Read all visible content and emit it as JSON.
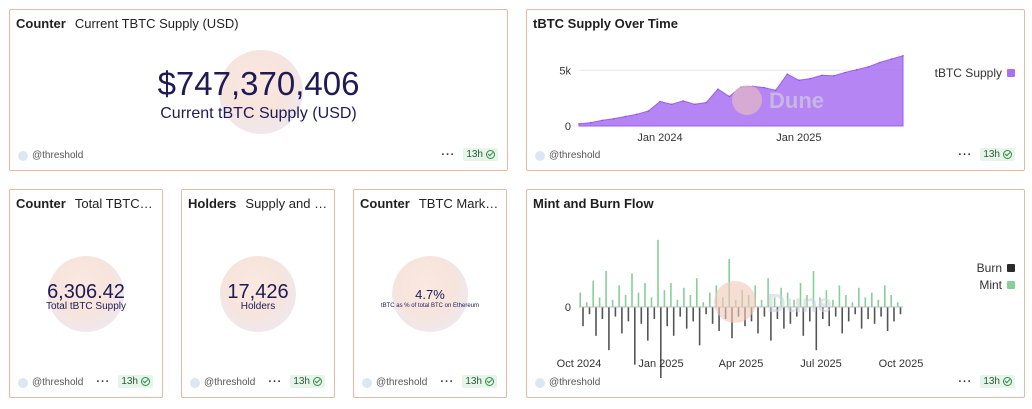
{
  "common": {
    "author": "@threshold",
    "age": "13h"
  },
  "supply_usd": {
    "kind": "Counter",
    "title": "Current TBTC Supply (USD)",
    "value": "$747,370,406",
    "label": "Current tBTC Supply (USD)"
  },
  "total": {
    "kind": "Counter",
    "title": "Total TBTC Su...",
    "value": "6,306.42",
    "label": "Total tBTC Supply"
  },
  "holders": {
    "kind": "Holders",
    "title": "Supply and Ho...",
    "value": "17,426",
    "label": "Holders"
  },
  "market": {
    "kind": "Counter",
    "title": "TBTC Market ...",
    "value": "4.7%",
    "label": "tBTC as % of total BTC on Ethereum"
  },
  "colors": {
    "accent": "#a970f2",
    "mint": "#86cf99",
    "burn": "#2b2b2b",
    "border": "#e9b9a6"
  },
  "chart_data": [
    {
      "type": "area",
      "title": "tBTC Supply Over Time",
      "watermark": "Dune",
      "y_ticks": [
        "0",
        "5k"
      ],
      "x_ticks": [
        "Jan 2024",
        "Jan 2025"
      ],
      "ylim": [
        0,
        7000
      ],
      "grid": true,
      "legend": "right",
      "series": [
        {
          "name": "tBTC Supply",
          "x": [
            "2023-06",
            "2023-07",
            "2023-08",
            "2023-09",
            "2023-10",
            "2023-11",
            "2023-12",
            "2024-01",
            "2024-02",
            "2024-03",
            "2024-04",
            "2024-05",
            "2024-06",
            "2024-07",
            "2024-08",
            "2024-09",
            "2024-10",
            "2024-11",
            "2024-12",
            "2025-01",
            "2025-02",
            "2025-03",
            "2025-04",
            "2025-05",
            "2025-06",
            "2025-07",
            "2025-08",
            "2025-09",
            "2025-10"
          ],
          "values": [
            200,
            300,
            500,
            650,
            850,
            1050,
            1350,
            2200,
            1950,
            2250,
            1950,
            2100,
            3300,
            2650,
            3500,
            3550,
            3450,
            3200,
            4650,
            4100,
            4250,
            4550,
            4500,
            4800,
            5050,
            5300,
            5700,
            6000,
            6300
          ]
        }
      ]
    },
    {
      "type": "bar",
      "title": "Mint and Burn Flow",
      "watermark": "Dune",
      "y_ticks": [
        "0"
      ],
      "x_ticks": [
        "Oct 2024",
        "Jan 2025",
        "Apr 2025",
        "Jul 2025",
        "Oct 2025"
      ],
      "legend": "right",
      "series": [
        {
          "name": "Burn",
          "values": [
            -40,
            -15,
            -60,
            -25,
            -90,
            -20,
            -55,
            -30,
            -120,
            -35,
            -70,
            -25,
            -150,
            -40,
            -60,
            -20,
            -45,
            -30,
            -80,
            -15,
            -35,
            -50,
            -25,
            -65,
            -20,
            -40,
            -30,
            -55,
            -20,
            -70,
            -25,
            -45,
            -35,
            -20,
            -60,
            -30,
            -90,
            -25,
            -40,
            -20,
            -55,
            -30,
            -15,
            -45,
            -25,
            -35,
            -20,
            -50,
            -30,
            -15
          ]
        },
        {
          "name": "Mint",
          "values": [
            30,
            10,
            55,
            20,
            75,
            15,
            45,
            25,
            70,
            30,
            50,
            20,
            140,
            35,
            50,
            15,
            40,
            25,
            60,
            10,
            30,
            45,
            20,
            100,
            15,
            35,
            25,
            45,
            15,
            60,
            20,
            40,
            30,
            15,
            50,
            25,
            75,
            20,
            35,
            15,
            45,
            25,
            10,
            40,
            20,
            30,
            15,
            45,
            25,
            10
          ]
        }
      ]
    }
  ]
}
